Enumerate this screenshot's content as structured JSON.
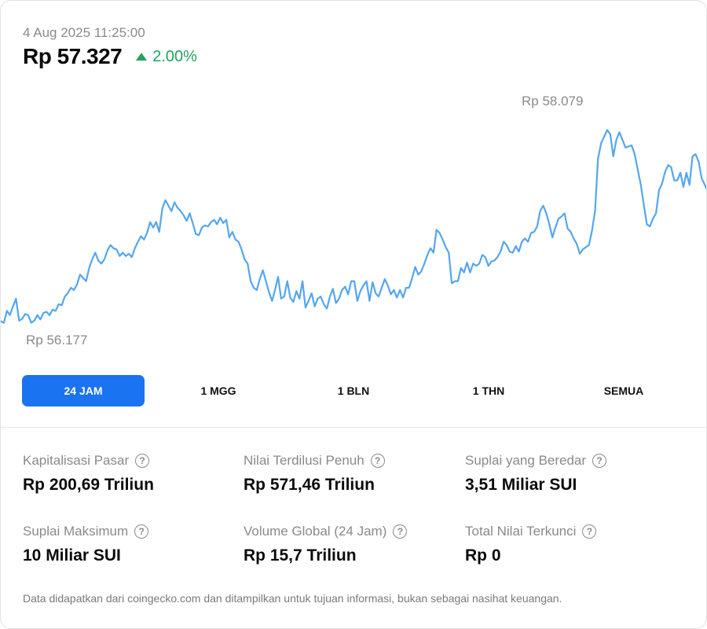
{
  "header": {
    "timestamp": "4 Aug 2025 11:25:00",
    "price": "Rp 57.327",
    "change": "2.00%",
    "change_direction": "up",
    "change_color": "#22a45d"
  },
  "chart_data": {
    "type": "line",
    "title": "",
    "xlabel": "",
    "ylabel": "",
    "high_label": "Rp 58.079",
    "low_label": "Rp 56.177",
    "high": 58079,
    "low": 56177,
    "line_color": "#55a6ef",
    "grid": false,
    "series": [
      {
        "values": [
          56195,
          56180,
          56290,
          56250,
          56330,
          56400,
          56200,
          56215,
          56260,
          56250,
          56180,
          56200,
          56250,
          56210,
          56270,
          56280,
          56250,
          56300,
          56290,
          56350,
          56340,
          56420,
          56450,
          56500,
          56480,
          56530,
          56620,
          56590,
          56560,
          56680,
          56760,
          56820,
          56750,
          56720,
          56760,
          56840,
          56890,
          56860,
          56850,
          56790,
          56820,
          56790,
          56810,
          56780,
          56860,
          56920,
          56970,
          56940,
          57000,
          57100,
          57050,
          57100,
          57010,
          57220,
          57300,
          57250,
          57200,
          57280,
          57230,
          57200,
          57160,
          57110,
          57180,
          57090,
          56990,
          56980,
          57050,
          57070,
          57060,
          57100,
          57120,
          57080,
          57140,
          57090,
          57120,
          56960,
          57010,
          56940,
          56920,
          56850,
          56760,
          56720,
          56560,
          56500,
          56480,
          56580,
          56660,
          56560,
          56460,
          56380,
          56480,
          56600,
          56400,
          56420,
          56560,
          56410,
          56370,
          56470,
          56400,
          56560,
          56320,
          56380,
          56450,
          56330,
          56400,
          56420,
          56350,
          56310,
          56420,
          56490,
          56360,
          56400,
          56480,
          56510,
          56440,
          56560,
          56560,
          56380,
          56470,
          56520,
          56560,
          56380,
          56550,
          56450,
          56420,
          56500,
          56580,
          56520,
          56440,
          56480,
          56410,
          56480,
          56410,
          56500,
          56500,
          56590,
          56690,
          56620,
          56650,
          56720,
          56800,
          56860,
          56820,
          57030,
          57000,
          56940,
          56870,
          56820,
          56540,
          56560,
          56560,
          56680,
          56640,
          56730,
          56640,
          56720,
          56700,
          56720,
          56800,
          56780,
          56700,
          56740,
          56750,
          56780,
          56830,
          56920,
          56890,
          56830,
          56820,
          56880,
          56830,
          56920,
          56950,
          56920,
          57000,
          57010,
          57060,
          57200,
          57250,
          57180,
          57080,
          56960,
          57050,
          57130,
          57150,
          57180,
          57040,
          57010,
          56950,
          56900,
          56810,
          56850,
          56870,
          56890,
          57020,
          57200,
          57680,
          57820,
          57880,
          57940,
          57900,
          57700,
          57850,
          57920,
          57850,
          57780,
          57790,
          57800,
          57720,
          57580,
          57440,
          57260,
          57080,
          57060,
          57130,
          57180,
          57390,
          57450,
          57560,
          57620,
          57600,
          57480,
          57480,
          57550,
          57420,
          57550,
          57440,
          57700,
          57720,
          57650,
          57500,
          57440,
          57380
        ]
      }
    ]
  },
  "tabs": [
    {
      "label": "24 JAM",
      "active": true
    },
    {
      "label": "1 MGG",
      "active": false
    },
    {
      "label": "1 BLN",
      "active": false
    },
    {
      "label": "1 THN",
      "active": false
    },
    {
      "label": "SEMUA",
      "active": false
    }
  ],
  "stats": [
    {
      "label": "Kapitalisasi Pasar",
      "value": "Rp 200,69 Triliun"
    },
    {
      "label": "Nilai Terdilusi Penuh",
      "value": "Rp 571,46 Triliun"
    },
    {
      "label": "Suplai yang Beredar",
      "value": "3,51 Miliar SUI"
    },
    {
      "label": "Suplai Maksimum",
      "value": "10 Miliar SUI"
    },
    {
      "label": "Volume Global (24 Jam)",
      "value": "Rp 15,7 Triliun"
    },
    {
      "label": "Total Nilai Terkunci",
      "value": "Rp 0"
    }
  ],
  "help_glyph": "?",
  "disclaimer": "Data didapatkan dari coingecko.com dan ditampilkan untuk tujuan informasi, bukan sebagai nasihat keuangan.",
  "colors": {
    "accent": "#1a73f0",
    "positive": "#22a45d"
  }
}
